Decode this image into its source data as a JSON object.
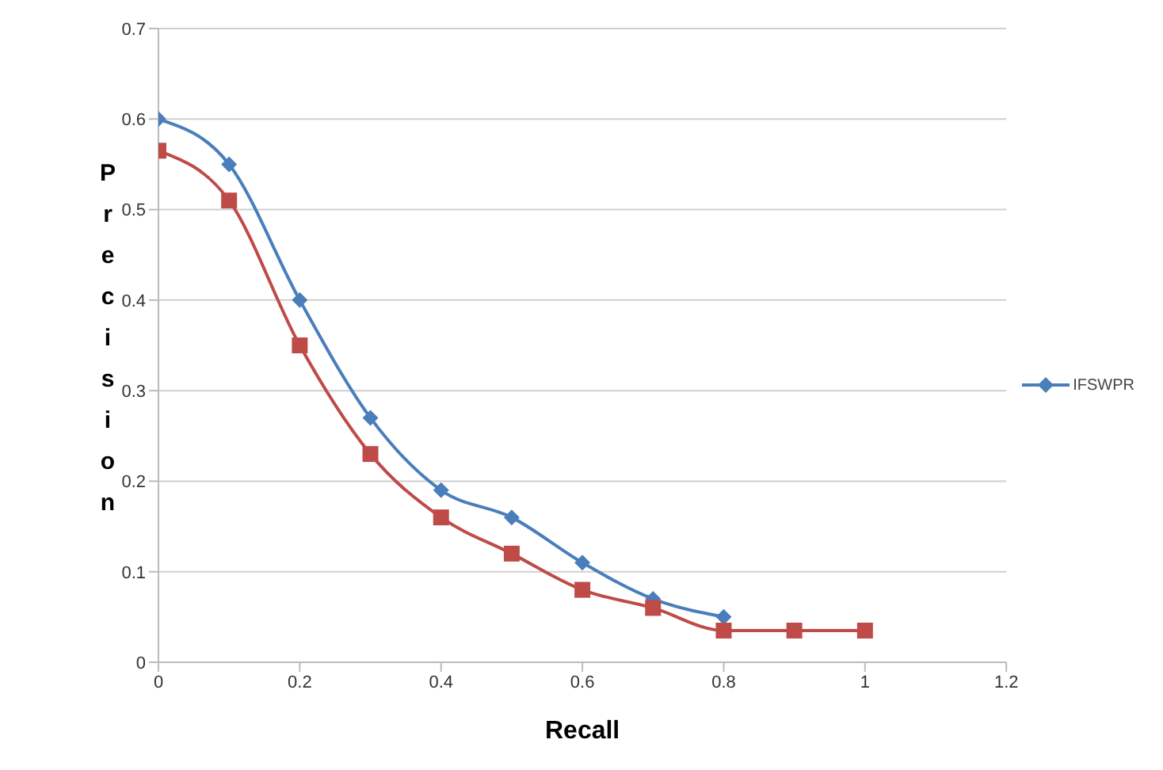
{
  "chart_data": {
    "type": "line",
    "xlabel": "Recall",
    "ylabel": "Precision",
    "x": [
      0,
      0.1,
      0.2,
      0.3,
      0.4,
      0.5,
      0.6,
      0.7,
      0.8,
      0.9,
      1
    ],
    "series": [
      {
        "name": "IFSWPR",
        "color": "#4a7ebb",
        "marker": "diamond",
        "values": [
          0.6,
          0.55,
          0.4,
          0.27,
          0.19,
          0.16,
          0.11,
          0.07,
          0.05,
          null,
          null
        ]
      },
      {
        "color": "#be4b48",
        "marker": "square",
        "values": [
          0.565,
          0.51,
          0.35,
          0.23,
          0.16,
          0.12,
          0.08,
          0.06,
          0.035,
          0.035,
          0.035
        ]
      }
    ],
    "xlim": [
      0,
      1.2
    ],
    "xticks": [
      0,
      0.2,
      0.4,
      0.6,
      0.8,
      1,
      1.2
    ],
    "ylim": [
      0,
      0.7
    ],
    "yticks": [
      0,
      0.1,
      0.2,
      0.3,
      0.4,
      0.5,
      0.6,
      0.7
    ],
    "grid": "y",
    "legend": "right",
    "line_style": "solid"
  }
}
